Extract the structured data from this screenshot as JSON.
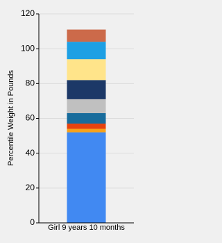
{
  "chart_data": {
    "type": "stacked_bar",
    "y_label": "Percentile Weight in Pounds",
    "categories": [
      "Girl 9 years 10 months"
    ],
    "series": [
      {
        "color": "#4189f2",
        "values": [
          52
        ]
      },
      {
        "color": "#f6a21c",
        "values": [
          2
        ]
      },
      {
        "color": "#e6430f",
        "values": [
          3
        ]
      },
      {
        "color": "#186c9c",
        "values": [
          6
        ]
      },
      {
        "color": "#c0c0c0",
        "values": [
          8
        ]
      },
      {
        "color": "#1c3867",
        "values": [
          11
        ]
      },
      {
        "color": "#ffe48a",
        "values": [
          12
        ]
      },
      {
        "color": "#1ea0e4",
        "values": [
          10
        ]
      },
      {
        "color": "#cc6a4a",
        "values": [
          7
        ]
      }
    ],
    "ylim": [
      0,
      120
    ],
    "yticks": [
      0,
      20,
      40,
      60,
      80,
      100,
      120
    ],
    "grid": true
  }
}
